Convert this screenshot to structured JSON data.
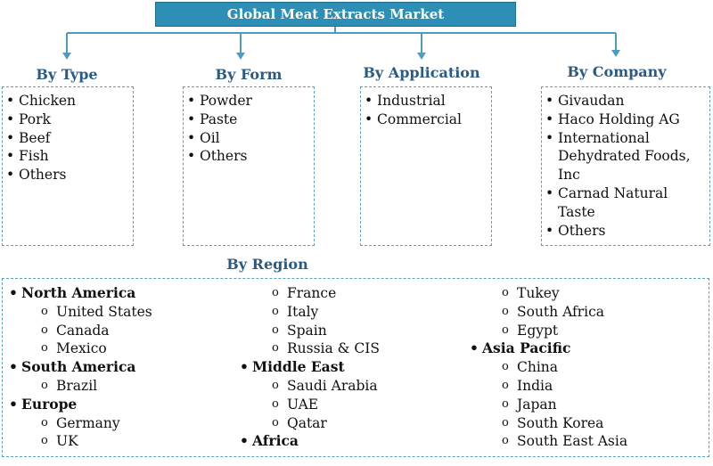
{
  "title": "Global  Meat Extracts Market",
  "categories": [
    {
      "heading": "By Type",
      "items": [
        "Chicken",
        "Pork",
        "Beef",
        "Fish",
        "Others"
      ]
    },
    {
      "heading": "By Form",
      "items": [
        "Powder",
        "Paste",
        "Oil",
        "Others"
      ]
    },
    {
      "heading": "By Application",
      "items": [
        "Industrial",
        "Commercial"
      ]
    },
    {
      "heading": "By Company",
      "items": [
        "Givaudan",
        "Haco Holding AG",
        "International Dehydrated Foods, Inc",
        "Carnad Natural Taste",
        "Others"
      ]
    }
  ],
  "region": {
    "heading": "By Region",
    "columns": [
      [
        {
          "kind": "region",
          "text": "North America"
        },
        {
          "kind": "sub",
          "text": "United States"
        },
        {
          "kind": "sub",
          "text": "Canada"
        },
        {
          "kind": "sub",
          "text": "Mexico"
        },
        {
          "kind": "region",
          "text": "South America"
        },
        {
          "kind": "sub",
          "text": "Brazil"
        },
        {
          "kind": "region",
          "text": "Europe"
        },
        {
          "kind": "sub",
          "text": "Germany"
        },
        {
          "kind": "sub",
          "text": "UK"
        }
      ],
      [
        {
          "kind": "sub",
          "text": "France"
        },
        {
          "kind": "sub",
          "text": "Italy"
        },
        {
          "kind": "sub",
          "text": "Spain"
        },
        {
          "kind": "sub",
          "text": "Russia & CIS"
        },
        {
          "kind": "region",
          "text": "Middle East"
        },
        {
          "kind": "sub",
          "text": "Saudi Arabia"
        },
        {
          "kind": "sub",
          "text": "UAE"
        },
        {
          "kind": "sub",
          "text": "Qatar"
        },
        {
          "kind": "region",
          "text": "Africa"
        }
      ],
      [
        {
          "kind": "sub",
          "text": "Tukey"
        },
        {
          "kind": "sub",
          "text": "South Africa"
        },
        {
          "kind": "sub",
          "text": "Egypt"
        },
        {
          "kind": "region",
          "text": "Asia Pacific"
        },
        {
          "kind": "sub",
          "text": "China"
        },
        {
          "kind": "sub",
          "text": "India"
        },
        {
          "kind": "sub",
          "text": "Japan"
        },
        {
          "kind": "sub",
          "text": "South Korea"
        },
        {
          "kind": "sub",
          "text": "South East Asia"
        }
      ]
    ]
  },
  "colors": {
    "title_bg": "#2e8fb6",
    "heading": "#2b5b84",
    "connector": "#4d9cc4",
    "box_border": "#5a9fc0"
  }
}
